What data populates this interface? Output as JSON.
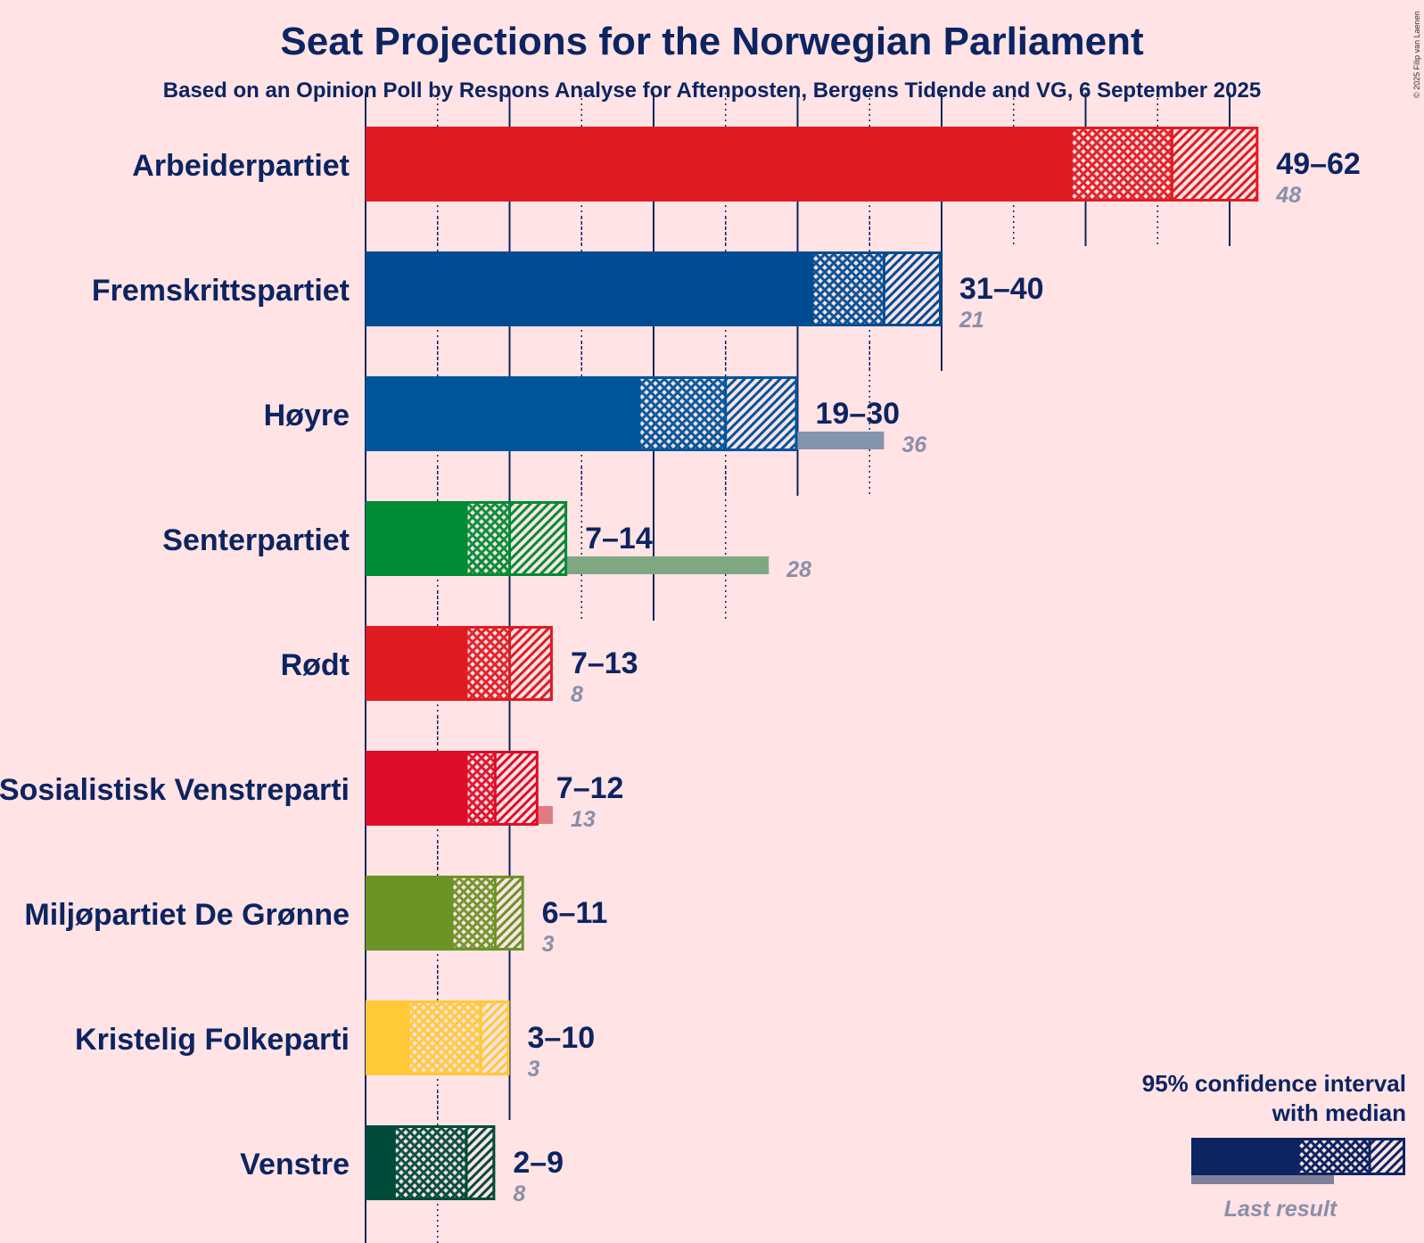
{
  "title": "Seat Projections for the Norwegian Parliament",
  "subtitle": "Based on an Opinion Poll by Respons Analyse for Aftenposten, Bergens Tidende and VG, 6 September 2025",
  "copyright": "© 2025 Filip van Laenen",
  "legend": {
    "line1": "95% confidence interval",
    "line2": "with median",
    "last_result": "Last result",
    "color": "#0C2461"
  },
  "chart_data": {
    "type": "bar",
    "orientation": "horizontal",
    "title": "Seat Projections for the Norwegian Parliament",
    "xlim": [
      0,
      62
    ],
    "major_gridline_every": 10,
    "minor_gridline_every": 5,
    "parties": [
      {
        "name": "Arbeiderpartiet",
        "low": 49,
        "median": 56,
        "high": 62,
        "range_label": "49–62",
        "last": 48,
        "last_label": "48",
        "color": "#E01B22",
        "last_color": "#DF7C81"
      },
      {
        "name": "Fremskrittspartiet",
        "low": 31,
        "median": 36,
        "high": 40,
        "range_label": "31–40",
        "last": 21,
        "last_label": "21",
        "color": "#004C93",
        "last_color": "#7F8FA9"
      },
      {
        "name": "Høyre",
        "low": 19,
        "median": 25,
        "high": 30,
        "range_label": "19–30",
        "last": 36,
        "last_label": "36",
        "color": "#00559B",
        "last_color": "#8494AC"
      },
      {
        "name": "Senterpartiet",
        "low": 7,
        "median": 10,
        "high": 14,
        "range_label": "7–14",
        "last": 28,
        "last_label": "28",
        "color": "#008C34",
        "last_color": "#7FA882"
      },
      {
        "name": "Rødt",
        "low": 7,
        "median": 10,
        "high": 13,
        "range_label": "7–13",
        "last": 8,
        "last_label": "8",
        "color": "#E01B22",
        "last_color": "#DF7C81"
      },
      {
        "name": "Sosialistisk Venstreparti",
        "low": 7,
        "median": 9,
        "high": 12,
        "range_label": "7–12",
        "last": 13,
        "last_label": "13",
        "color": "#DF0D29",
        "last_color": "#DF7C81"
      },
      {
        "name": "Miljøpartiet De Grønne",
        "low": 6,
        "median": 9,
        "high": 11,
        "range_label": "6–11",
        "last": 3,
        "last_label": "3",
        "color": "#6B9326",
        "last_color": "#A7AE85"
      },
      {
        "name": "Kristelig Folkeparti",
        "low": 3,
        "median": 8,
        "high": 10,
        "range_label": "3–10",
        "last": 3,
        "last_label": "3",
        "color": "#FFC938",
        "last_color": "#F6CE89"
      },
      {
        "name": "Venstre",
        "low": 2,
        "median": 7,
        "high": 9,
        "range_label": "2–9",
        "last": 8,
        "last_label": "8",
        "color": "#004B3A",
        "last_color": "#7F9186"
      }
    ]
  }
}
